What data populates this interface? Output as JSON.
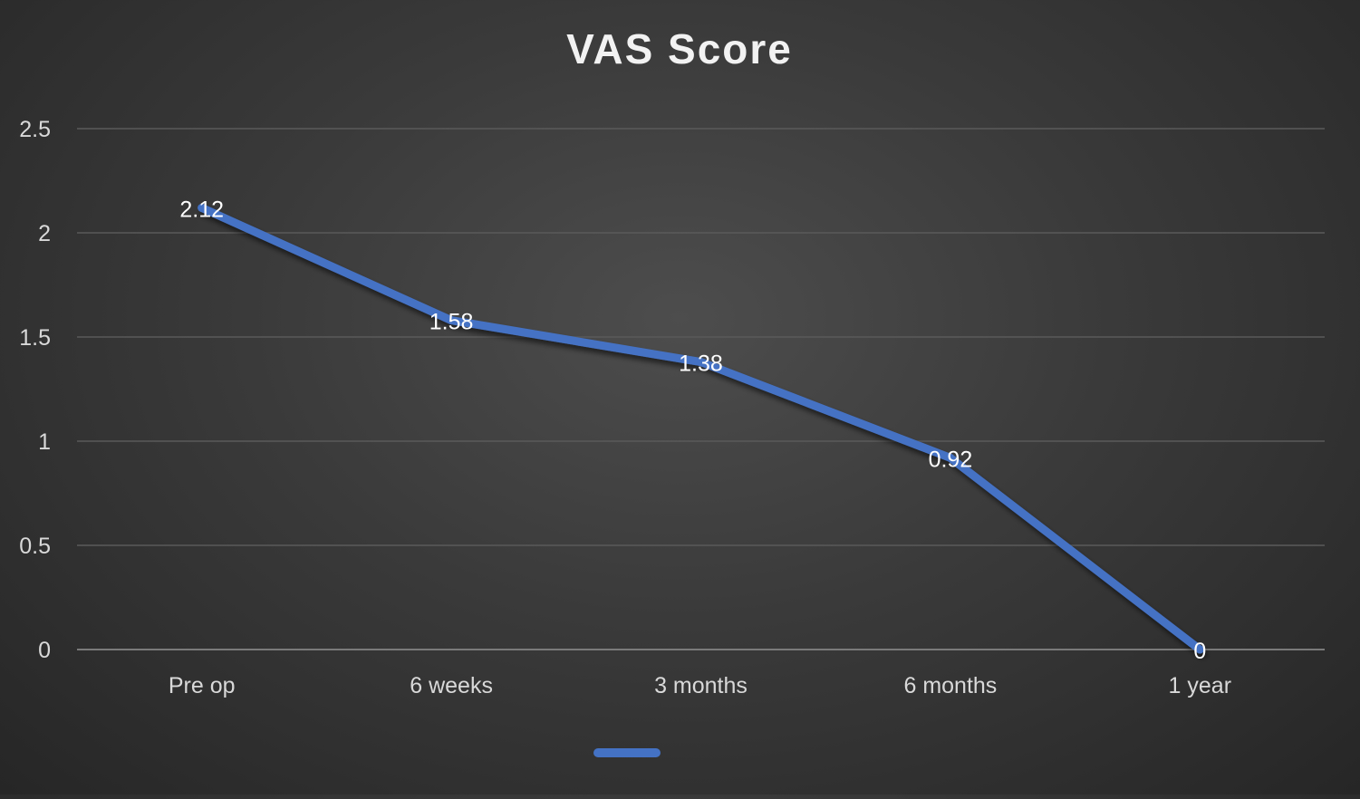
{
  "chart_data": {
    "type": "line",
    "title": "VAS Score",
    "xlabel": "",
    "ylabel": "",
    "categories": [
      "Pre op",
      "6 weeks",
      "3 months",
      "6 months",
      "1 year"
    ],
    "series": [
      {
        "values": [
          2.12,
          1.58,
          1.38,
          0.92,
          0
        ],
        "data_labels": [
          "2.12",
          "1.58",
          "1.38",
          "0.92",
          "0"
        ],
        "color": "#4472c4"
      }
    ],
    "ylim": [
      0,
      2.5
    ],
    "yticks": [
      "0",
      "0.5",
      "1",
      "1.5",
      "2",
      "2.5"
    ],
    "grid": true,
    "legend": "bottom",
    "background": "dark-gradient",
    "colors": {
      "line": "#4472c4",
      "text": "#d9d9d9",
      "title": "#f2f2f2",
      "grid": "#5a5a5a"
    }
  }
}
